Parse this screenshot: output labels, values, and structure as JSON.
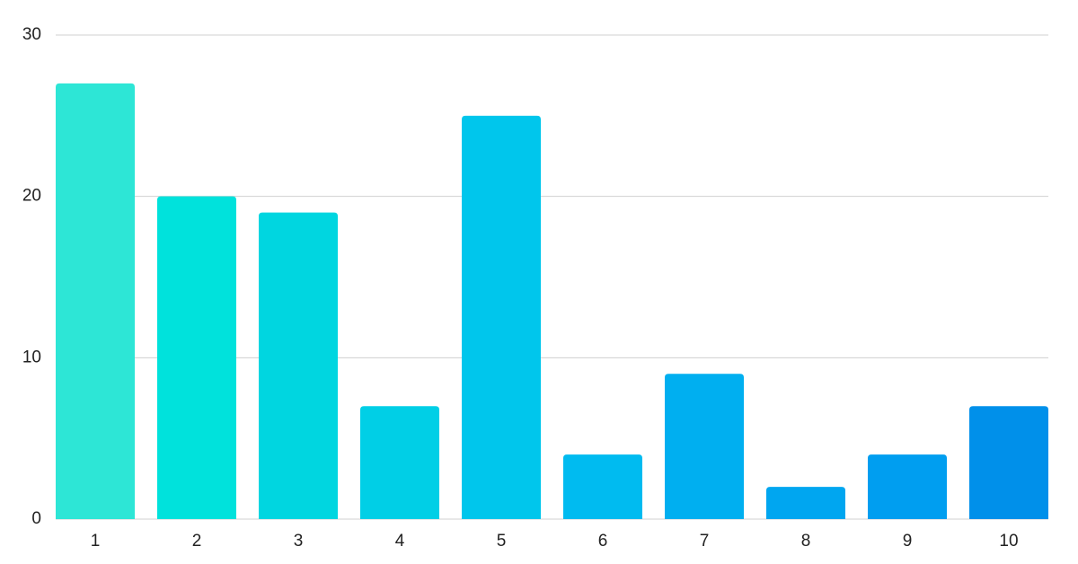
{
  "chart_data": {
    "type": "bar",
    "categories": [
      "1",
      "2",
      "3",
      "4",
      "5",
      "6",
      "7",
      "8",
      "9",
      "10"
    ],
    "values": [
      27,
      20,
      19,
      7,
      25,
      4,
      9,
      2,
      4,
      7
    ],
    "colors": [
      "#2de6d6",
      "#00e2dc",
      "#00d6e0",
      "#00cfe6",
      "#00c6ec",
      "#00bbf0",
      "#00aff0",
      "#00a6f0",
      "#009ef0",
      "#0090ea"
    ],
    "ylim": [
      0,
      30
    ],
    "yticks": [
      0,
      10,
      20,
      30
    ],
    "grid": true
  }
}
